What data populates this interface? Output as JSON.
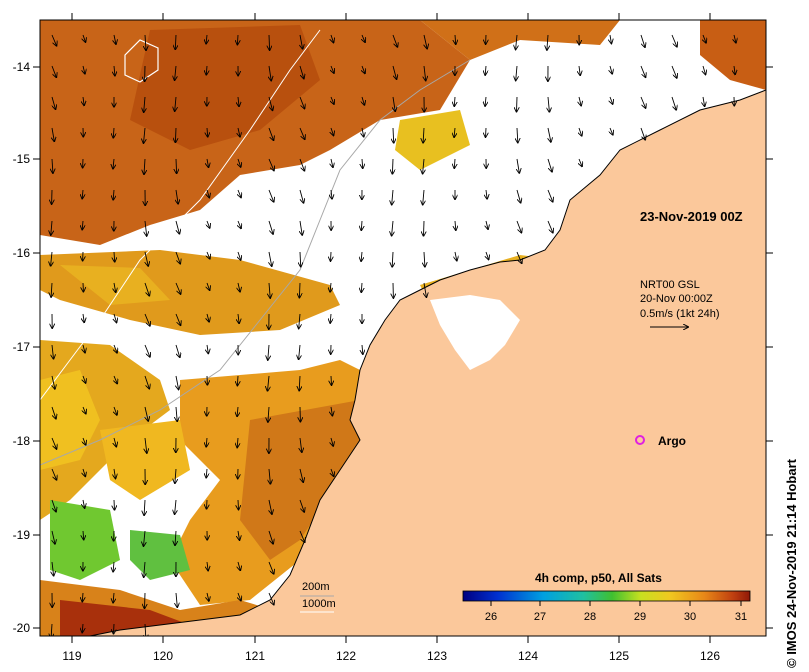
{
  "map": {
    "x_ticks": [
      "119",
      "120",
      "121",
      "122",
      "123",
      "124",
      "125",
      "126"
    ],
    "y_ticks": [
      "-14",
      "-15",
      "-16",
      "-17",
      "-18",
      "-19",
      "-20"
    ],
    "date_label": "23-Nov-2019 00Z",
    "current_legend": {
      "line1": "NRT00 GSL",
      "line2": "20-Nov 00:00Z",
      "line3": "0.5m/s (1kt 24h)"
    },
    "argo_label": "Argo",
    "bathymetry_labels": [
      "200m",
      "1000m"
    ],
    "colorbar": {
      "title": "4h comp, p50, All Sats",
      "ticks": [
        "26",
        "27",
        "28",
        "29",
        "30",
        "31"
      ]
    },
    "credit": "© IMOS 24-Nov-2019 21:14 Hobart",
    "colors": {
      "land": "#fbc89b",
      "no_data": "#ffffff",
      "sst_warm": "#c25a10",
      "sst_mid": "#e49a18",
      "sst_cool": "#f2c21e",
      "argo": "#e020e0"
    }
  }
}
